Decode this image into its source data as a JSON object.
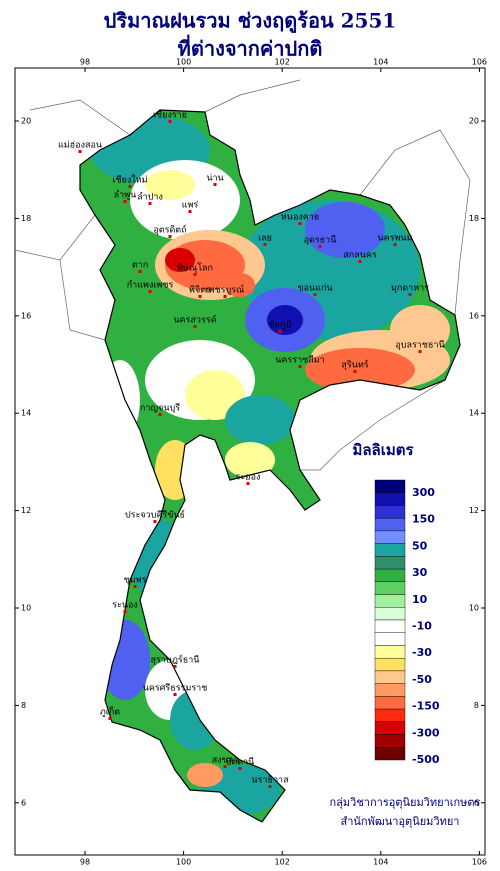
{
  "title": [
    "ปริมาณฝนรวม ช่วงฤดูร้อน 2551",
    "ที่ต่างจากค่าปกติ"
  ],
  "map": {
    "lon_ticks": [
      98,
      100,
      102,
      104,
      106
    ],
    "lat_ticks": [
      20,
      18,
      16,
      14,
      12,
      10,
      8,
      6
    ],
    "labels": [
      "เชียงราย",
      "แม่ฮ่องสอน",
      "เชียงใหม่",
      "ลำพูน",
      "ลำปาง",
      "น่าน",
      "แพร่",
      "อุตรดิตถ์",
      "ตาก",
      "พิษณุโลก",
      "กำแพงเพชร",
      "พิจิตร",
      "เพชรบูรณ์",
      "นครสวรรค์",
      "เลย",
      "หนองคาย",
      "อุดรธานี",
      "สกลนคร",
      "นครพนม",
      "มุกดาหาร",
      "ขอนแก่น",
      "ชัยภูมิ",
      "นครราชสีมา",
      "สุรินทร์",
      "อุบลราชธานี",
      "กาญจนบุรี",
      "ระยอง",
      "ประจวบคีรีขันธ์",
      "ชุมพร",
      "ระนอง",
      "สุราษฎร์ธานี",
      "นครศรีธรรมราช",
      "ภูเก็ต",
      "สงขลา",
      "ปัตตานี",
      "นราธิวาส"
    ]
  },
  "legend": {
    "title": "มิลลิเมตร",
    "labels": [
      300,
      150,
      50,
      30,
      10,
      -10,
      -30,
      -50,
      -150,
      -300,
      -500
    ],
    "colors": [
      "#00007a",
      "#1010b0",
      "#3030d8",
      "#5060f0",
      "#7090ff",
      "#1aa5a0",
      "#2f8f6a",
      "#30b040",
      "#60d060",
      "#a0f0a0",
      "#d8ffd8",
      "#ffffff",
      "#ffffff",
      "#ffff99",
      "#ffe060",
      "#ffc890",
      "#ff9a60",
      "#ff6a40",
      "#ff2a10",
      "#d80000",
      "#a00000",
      "#700000"
    ]
  },
  "credits": [
    "กลุ่มวิชาการอุตุนิยมวิทยาเกษตร",
    "สำนักพัฒนาอุตุนิยมวิทยา"
  ]
}
